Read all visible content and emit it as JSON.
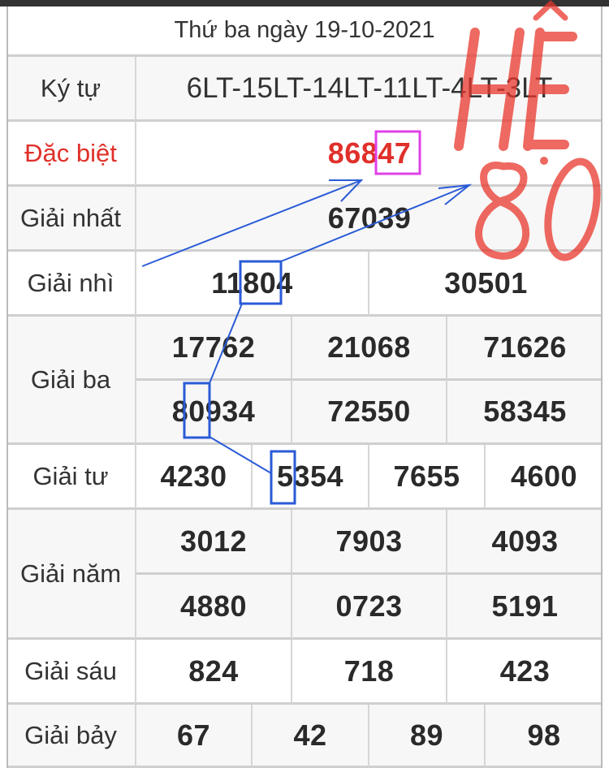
{
  "header": {
    "title": "Thứ ba ngày 19-10-2021"
  },
  "ky_tu": {
    "label": "Ký tự",
    "value": "6LT-15LT-14LT-11LT-4LT-3LT"
  },
  "dac_biet": {
    "label": "Đặc biệt",
    "prefix": "868",
    "highlight": "47",
    "color": "#e0302a"
  },
  "giai_nhat": {
    "label": "Giải nhất",
    "values": [
      "67039"
    ]
  },
  "giai_nhi": {
    "label": "Giải nhì",
    "values": [
      "11804",
      "30501"
    ]
  },
  "giai_ba": {
    "label": "Giải ba",
    "values": [
      "17762",
      "21068",
      "71626",
      "80934",
      "72550",
      "58345"
    ]
  },
  "giai_tu": {
    "label": "Giải tư",
    "values": [
      "4230",
      "5354",
      "7655",
      "4600"
    ]
  },
  "giai_nam": {
    "label": "Giải năm",
    "values": [
      "3012",
      "7903",
      "4093",
      "4880",
      "0723",
      "5191"
    ]
  },
  "giai_sau": {
    "label": "Giải sáu",
    "values": [
      "824",
      "718",
      "423"
    ]
  },
  "giai_bay": {
    "label": "Giải bảy",
    "values": [
      "67",
      "42",
      "89",
      "98"
    ]
  },
  "annotation": {
    "watermark_line1": "HỆ",
    "watermark_line2": "80",
    "watermark_color": "#e8372c",
    "line_color": "#2a5bd7",
    "box_color": "#e040e8"
  }
}
